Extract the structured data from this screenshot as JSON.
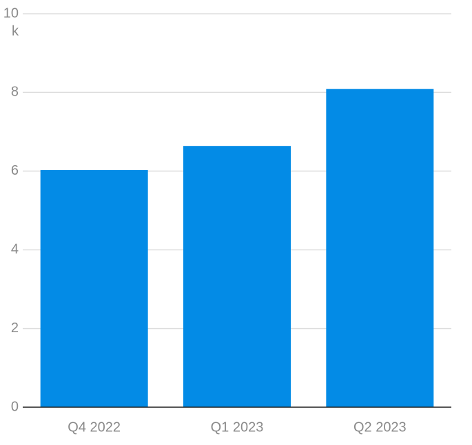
{
  "chart_data": {
    "type": "bar",
    "y_unit": "k",
    "categories": [
      "Q4 2022",
      "Q1 2023",
      "Q2 2023"
    ],
    "values": [
      6.03,
      6.64,
      8.09
    ],
    "color": "#038be6",
    "ylim": [
      0,
      10
    ],
    "yticks": [
      0,
      2,
      4,
      6,
      8,
      10
    ],
    "grid": true
  }
}
